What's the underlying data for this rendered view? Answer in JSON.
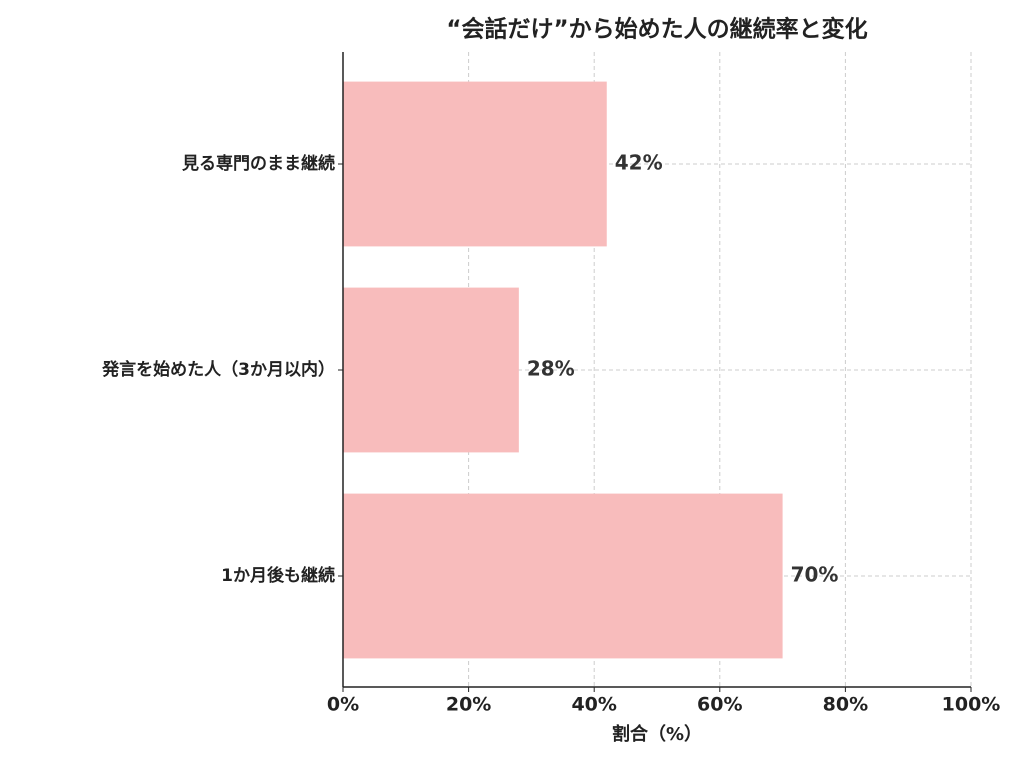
{
  "chart_data": {
    "type": "barh",
    "title": "“会話だけ”から始めた人の継続率と変化",
    "xlabel": "割合（%）",
    "categories": [
      "見る専門のまま継続",
      "発言を始めた人（3か月以内）",
      "1か月後も継続"
    ],
    "values": [
      42,
      28,
      70
    ],
    "value_labels": [
      "42%",
      "28%",
      "70%"
    ],
    "color": "#f8bcbc",
    "xlim": [
      0,
      100
    ],
    "xticks": [
      {
        "value": 0,
        "label": "0%"
      },
      {
        "value": 20,
        "label": "20%"
      },
      {
        "value": 40,
        "label": "40%"
      },
      {
        "value": 60,
        "label": "60%"
      },
      {
        "value": 80,
        "label": "80%"
      },
      {
        "value": 100,
        "label": "100%"
      }
    ],
    "grid": true
  }
}
